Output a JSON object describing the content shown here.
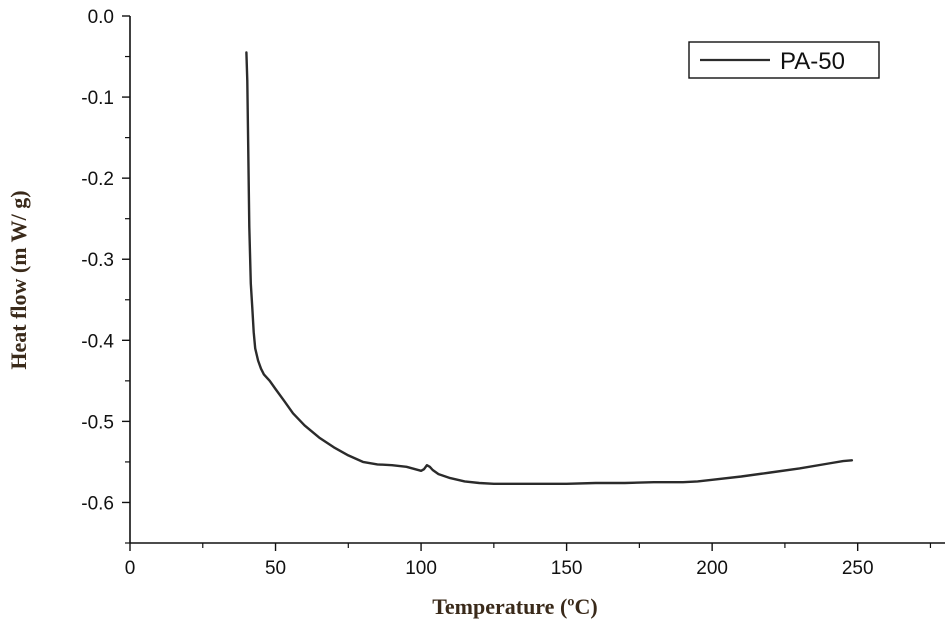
{
  "chart_data": {
    "type": "line",
    "title": "",
    "xlabel": "Temperature (ºC)",
    "ylabel": "Heat flow (m W/ g)",
    "xlim": [
      0,
      280
    ],
    "ylim": [
      -0.65,
      0.0
    ],
    "x_ticks": [
      0,
      50,
      100,
      150,
      200,
      250
    ],
    "x_tick_labels": [
      "0",
      "50",
      "100",
      "150",
      "200",
      "250"
    ],
    "y_ticks": [
      0.0,
      -0.1,
      -0.2,
      -0.3,
      -0.4,
      -0.5,
      -0.6
    ],
    "y_tick_labels": [
      "0.0",
      "-0.1",
      "-0.2",
      "-0.3",
      "-0.4",
      "-0.5",
      "-0.6"
    ],
    "grid": false,
    "legend_position": "top-right",
    "series": [
      {
        "name": "PA-50",
        "color": "#2b2b2b",
        "x": [
          40.0,
          40.3,
          40.6,
          41.0,
          41.5,
          42.0,
          42.5,
          43.0,
          44.0,
          45.0,
          46.0,
          48.0,
          50.0,
          53.0,
          56.0,
          60.0,
          65.0,
          70.0,
          75.0,
          80.0,
          85.0,
          90.0,
          95.0,
          100.0,
          101.0,
          102.0,
          103.0,
          104.0,
          106.0,
          110.0,
          115.0,
          120.0,
          125.0,
          130.0,
          140.0,
          150.0,
          160.0,
          170.0,
          180.0,
          190.0,
          195.0,
          200.0,
          210.0,
          220.0,
          230.0,
          240.0,
          245.0,
          248.0
        ],
        "y": [
          -0.045,
          -0.08,
          -0.16,
          -0.26,
          -0.33,
          -0.36,
          -0.39,
          -0.41,
          -0.425,
          -0.435,
          -0.442,
          -0.45,
          -0.46,
          -0.475,
          -0.49,
          -0.505,
          -0.52,
          -0.532,
          -0.542,
          -0.55,
          -0.553,
          -0.554,
          -0.556,
          -0.561,
          -0.559,
          -0.554,
          -0.556,
          -0.56,
          -0.565,
          -0.57,
          -0.574,
          -0.576,
          -0.577,
          -0.577,
          -0.577,
          -0.577,
          -0.576,
          -0.576,
          -0.575,
          -0.575,
          -0.574,
          -0.572,
          -0.568,
          -0.563,
          -0.558,
          -0.552,
          -0.549,
          -0.548
        ]
      }
    ]
  }
}
